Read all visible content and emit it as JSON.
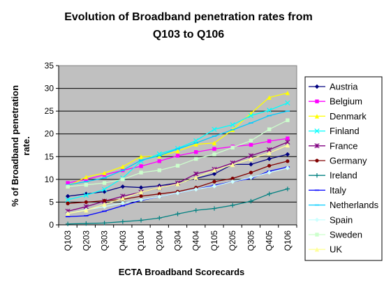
{
  "chart_data": {
    "type": "line",
    "title": [
      "Evolution of Broadband penetration rates from",
      "Q103 to Q106"
    ],
    "xlabel": "ECTA Broadband Scorecards",
    "ylabel": [
      "% of Broadband penetration",
      "rate."
    ],
    "categories": [
      "Q103",
      "Q203",
      "Q303",
      "Q403",
      "Q104",
      "Q204",
      "Q304",
      "Q404",
      "Q105",
      "Q205",
      "Q305",
      "Q405",
      "Q106"
    ],
    "ylim": [
      0,
      35
    ],
    "yticks": [
      0,
      5,
      10,
      15,
      20,
      25,
      30,
      35
    ],
    "grid": true,
    "legend_placement": "right",
    "series": [
      {
        "name": "Austria",
        "color": "#000080",
        "marker": "diamond",
        "values": [
          6.3,
          6.8,
          7.3,
          8.4,
          8.2,
          8.6,
          9.2,
          10.2,
          11.2,
          13.3,
          13.3,
          14.5,
          15.5
        ]
      },
      {
        "name": "Belgium",
        "color": "#FF00FF",
        "marker": "square",
        "values": [
          9.2,
          10.0,
          11.0,
          12.0,
          12.9,
          14.0,
          15.2,
          16.0,
          16.7,
          17.2,
          17.6,
          18.4,
          19.0
        ]
      },
      {
        "name": "Denmark",
        "color": "#FFFF00",
        "marker": "triangle",
        "values": [
          8.5,
          10.5,
          11.4,
          12.8,
          15.0,
          15.1,
          16.2,
          17.7,
          18.0,
          20.9,
          24.5,
          28.0,
          29.0
        ]
      },
      {
        "name": "Finland",
        "color": "#00FFFF",
        "marker": "x",
        "values": [
          5.5,
          6.5,
          7.8,
          10.3,
          14.0,
          15.6,
          16.8,
          18.5,
          21.0,
          22.0,
          24.0,
          25.2,
          26.8
        ]
      },
      {
        "name": "France",
        "color": "#800080",
        "marker": "star",
        "values": [
          3.0,
          4.0,
          5.2,
          6.3,
          7.2,
          8.2,
          9.2,
          11.2,
          12.2,
          13.6,
          15.2,
          16.5,
          18.2
        ]
      },
      {
        "name": "Germany",
        "color": "#800000",
        "marker": "circle",
        "values": [
          4.7,
          5.0,
          5.3,
          5.6,
          6.3,
          6.8,
          7.3,
          8.2,
          9.5,
          10.2,
          11.5,
          13.0,
          14.0
        ]
      },
      {
        "name": "Ireland",
        "color": "#008080",
        "marker": "plus",
        "values": [
          0.2,
          0.3,
          0.4,
          0.7,
          1.0,
          1.5,
          2.4,
          3.2,
          3.6,
          4.3,
          5.2,
          6.8,
          7.9
        ]
      },
      {
        "name": "Italy",
        "color": "#0000FF",
        "marker": "dash",
        "values": [
          1.8,
          2.0,
          3.0,
          4.2,
          5.4,
          6.2,
          7.0,
          7.8,
          8.7,
          9.5,
          10.2,
          11.8,
          12.7
        ]
      },
      {
        "name": "Netherlands",
        "color": "#00CCFF",
        "marker": "dash",
        "values": [
          8.8,
          9.5,
          10.3,
          12.0,
          14.2,
          15.2,
          16.7,
          18.0,
          19.5,
          20.9,
          22.4,
          24.0,
          25.0
        ]
      },
      {
        "name": "Spain",
        "color": "#CCFFFF",
        "marker": "diamond",
        "values": [
          2.5,
          3.3,
          4.0,
          4.8,
          5.5,
          6.2,
          7.0,
          7.8,
          8.5,
          9.5,
          10.4,
          11.5,
          12.5
        ]
      },
      {
        "name": "Sweden",
        "color": "#CCFFCC",
        "marker": "square",
        "values": [
          8.4,
          8.8,
          9.2,
          10.0,
          11.5,
          12.0,
          13.0,
          14.5,
          15.5,
          17.0,
          18.5,
          21.0,
          23.0
        ]
      },
      {
        "name": "UK",
        "color": "#FFFF99",
        "marker": "triangle",
        "values": [
          2.5,
          3.2,
          4.5,
          5.8,
          7.2,
          8.2,
          9.0,
          10.4,
          12.0,
          13.2,
          14.5,
          15.8,
          17.5
        ]
      }
    ]
  }
}
